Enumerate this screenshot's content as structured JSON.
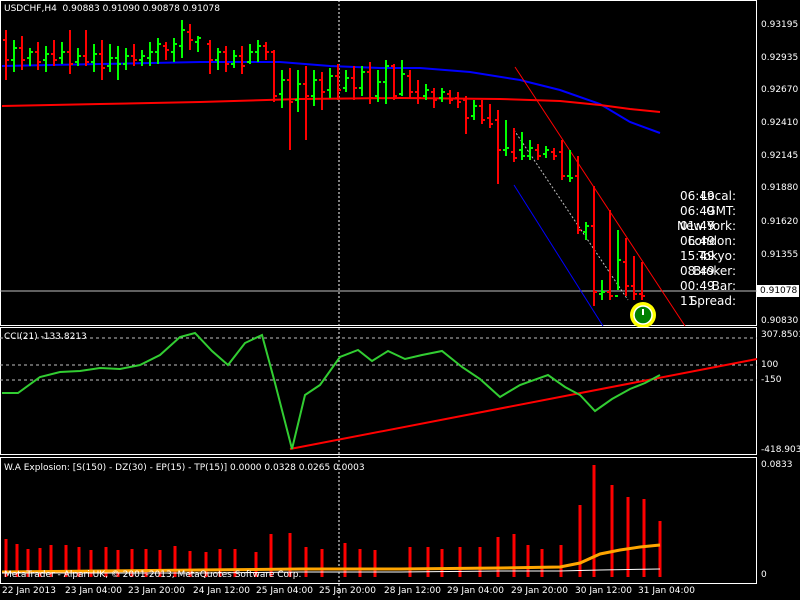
{
  "header": {
    "title": "USDCHF,H4  0.90883 0.91090 0.90878 0.91078"
  },
  "price_axis": {
    "labels": [
      "0.93195",
      "0.92935",
      "0.92670",
      "0.92410",
      "0.92145",
      "0.91880",
      "0.91620",
      "0.91355",
      "0.90830"
    ],
    "current_price": "0.91078"
  },
  "clock": {
    "rows": [
      {
        "label": "Local:",
        "value": "06:49"
      },
      {
        "label": "GMT:",
        "value": "06:49"
      },
      {
        "label": "New York:",
        "value": "01:49"
      },
      {
        "label": "London:",
        "value": "06:49"
      },
      {
        "label": "Tokyo:",
        "value": "15:49"
      },
      {
        "label": "Broker:",
        "value": "08:49"
      },
      {
        "label": "Bar:",
        "value": "00:49"
      },
      {
        "label": "Spread:",
        "value": "11"
      }
    ]
  },
  "cci_pane": {
    "title": "CCI(21) -133.8213",
    "axis": {
      "top": "307.8501",
      "level_pos": "100",
      "level_neg": "-150",
      "bottom": "-418.9034"
    }
  },
  "wa_pane": {
    "title": "W.A Explosion: [S(150) - DZ(30) - EP(15) - TP(15)] 0.0000 0.0328 0.0265 0.0003",
    "axis": {
      "top": "0.0833",
      "bottom": "0"
    },
    "watermark": "MetaTrader - Alpari UK, © 2001-2013, MetaQuotes Software Corp."
  },
  "time_axis": {
    "labels": [
      "22 Jan 2013",
      "23 Jan 04:00",
      "23 Jan 20:00",
      "24 Jan 12:00",
      "25 Jan 04:00",
      "25 Jan 20:00",
      "28 Jan 12:00",
      "29 Jan 04:00",
      "29 Jan 20:00",
      "30 Jan 12:00",
      "31 Jan 04:00"
    ]
  },
  "colors": {
    "bull": "#00ff00",
    "bear": "#ff0000",
    "ma_fast": "#0000ff",
    "ma_slow": "#ff0000",
    "cci_line": "#32cd32",
    "signal": "#ffa500"
  }
}
